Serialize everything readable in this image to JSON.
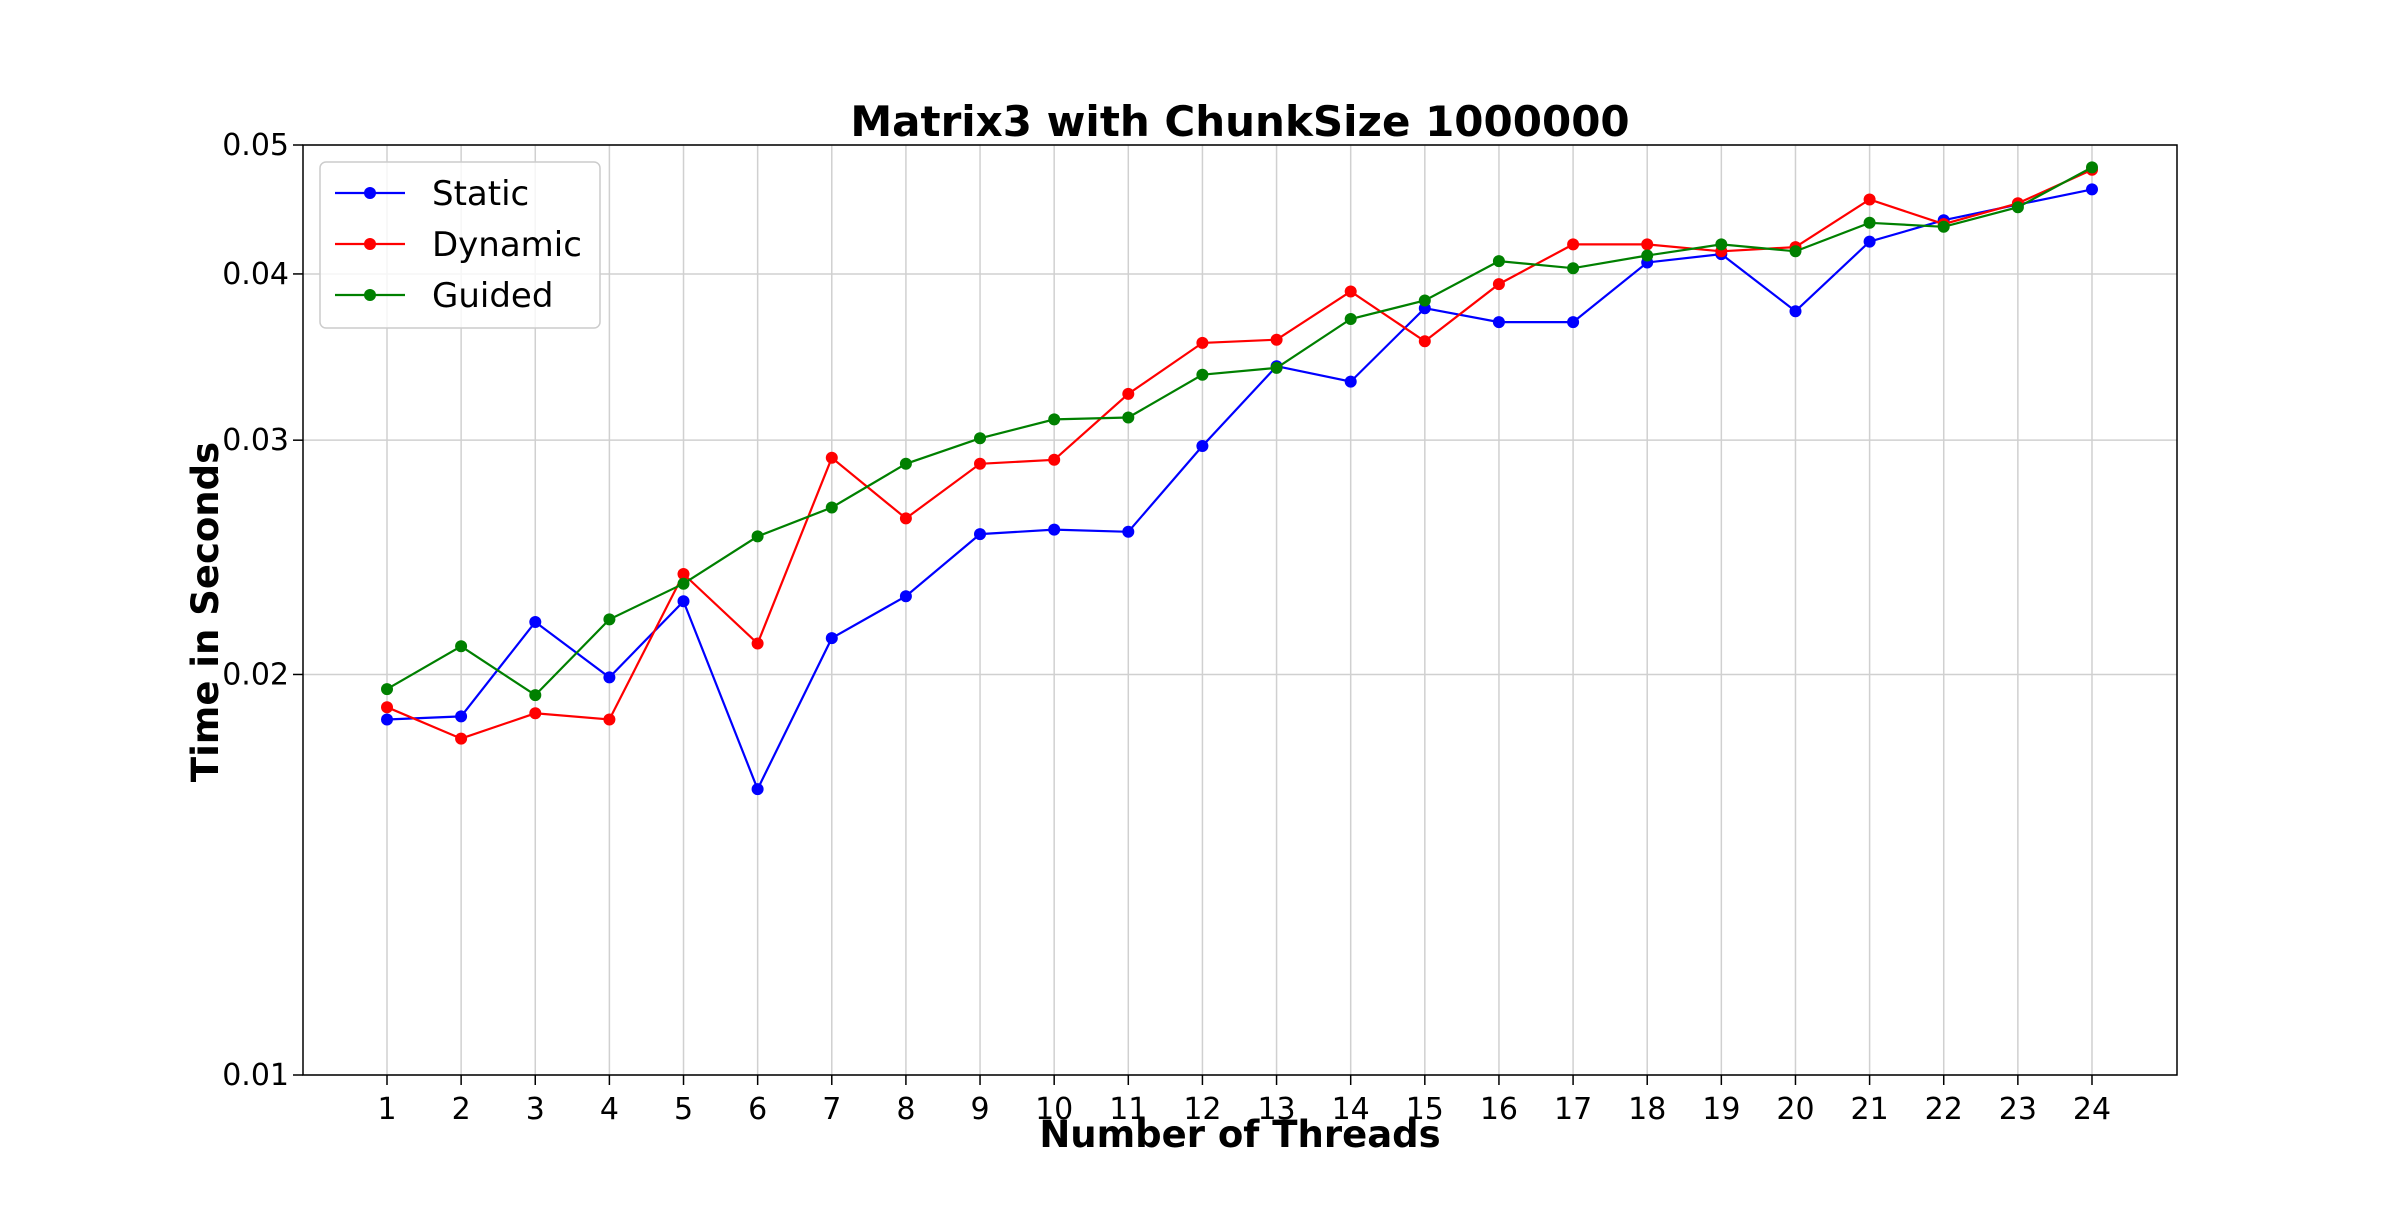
{
  "chart_data": {
    "type": "line",
    "title": "Matrix3 with ChunkSize 1000000",
    "xlabel": "Number of Threads",
    "ylabel": "Time in Seconds",
    "yscale": "log",
    "ylim": [
      0.01,
      0.05
    ],
    "yticks": [
      {
        "value": 0.01,
        "label": "0.01"
      },
      {
        "value": 0.02,
        "label": "0.02"
      },
      {
        "value": 0.03,
        "label": "0.03"
      },
      {
        "value": 0.04,
        "label": "0.04"
      },
      {
        "value": 0.05,
        "label": "0.05"
      }
    ],
    "x": [
      1,
      2,
      3,
      4,
      5,
      6,
      7,
      8,
      9,
      10,
      11,
      12,
      13,
      14,
      15,
      16,
      17,
      18,
      19,
      20,
      21,
      22,
      23,
      24
    ],
    "grid": true,
    "legend_position": "top-left",
    "series": [
      {
        "name": "Static",
        "color": "#0000ff",
        "values": [
          0.0185,
          0.0186,
          0.0219,
          0.0199,
          0.0227,
          0.0164,
          0.0213,
          0.0229,
          0.0255,
          0.0257,
          0.0256,
          0.0297,
          0.0341,
          0.0332,
          0.0377,
          0.0368,
          0.0368,
          0.0408,
          0.0414,
          0.0375,
          0.0423,
          0.0439,
          0.0451,
          0.0463
        ]
      },
      {
        "name": "Dynamic",
        "color": "#ff0000",
        "values": [
          0.0189,
          0.0179,
          0.0187,
          0.0185,
          0.0238,
          0.0211,
          0.0291,
          0.0262,
          0.0288,
          0.029,
          0.0325,
          0.0355,
          0.0357,
          0.0388,
          0.0356,
          0.0393,
          0.0421,
          0.0421,
          0.0416,
          0.0419,
          0.0455,
          0.0436,
          0.0452,
          0.0479
        ]
      },
      {
        "name": "Guided",
        "color": "#008000",
        "values": [
          0.0195,
          0.021,
          0.0193,
          0.022,
          0.0234,
          0.0254,
          0.0267,
          0.0288,
          0.0301,
          0.0311,
          0.0312,
          0.0336,
          0.034,
          0.037,
          0.0382,
          0.0409,
          0.0404,
          0.0413,
          0.0421,
          0.0416,
          0.0437,
          0.0434,
          0.0449,
          0.0481
        ]
      }
    ]
  }
}
